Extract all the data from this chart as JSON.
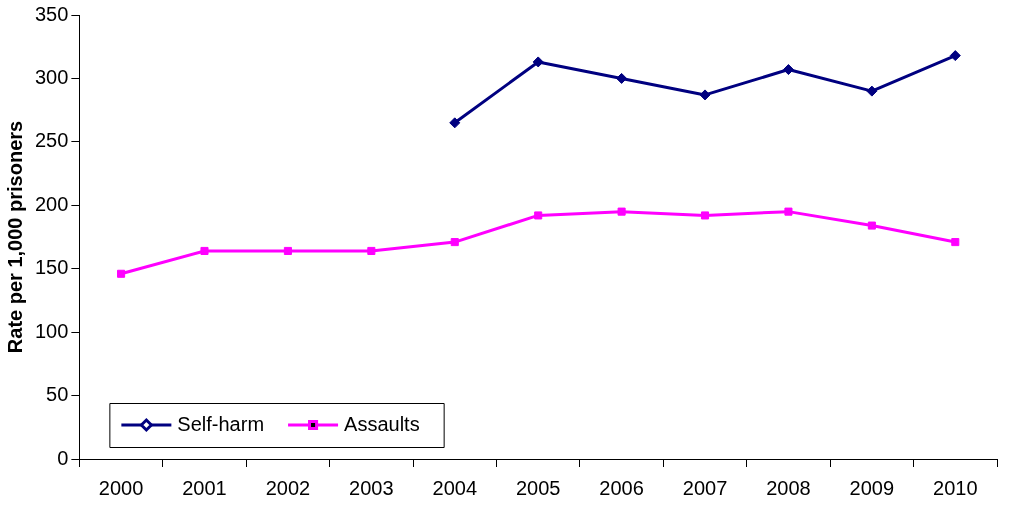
{
  "chart_data": {
    "type": "line",
    "ylabel": "Rate per 1,000 prisoners",
    "categories": [
      "2000",
      "2001",
      "2002",
      "2003",
      "2004",
      "2005",
      "2006",
      "2007",
      "2008",
      "2009",
      "2010"
    ],
    "series": [
      {
        "name": "Self-harm",
        "color": "#000080",
        "marker": "diamond",
        "values": [
          null,
          null,
          null,
          null,
          265,
          313,
          300,
          287,
          307,
          290,
          318
        ]
      },
      {
        "name": "Assaults",
        "color": "#ff00ff",
        "marker": "square",
        "values": [
          146,
          164,
          164,
          164,
          171,
          192,
          195,
          192,
          195,
          184,
          171
        ]
      }
    ],
    "ylim": [
      0,
      350
    ],
    "yticks": [
      0,
      50,
      100,
      150,
      200,
      250,
      300,
      350
    ],
    "grid": false,
    "legend": "bottom left",
    "line_style": "solid"
  }
}
